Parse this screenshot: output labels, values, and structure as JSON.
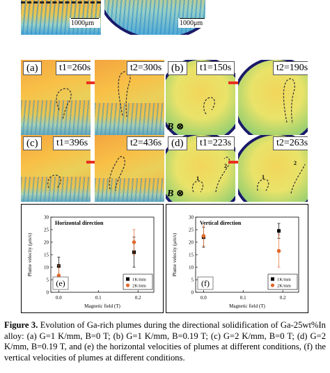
{
  "top_strip": {
    "scale_left": "1000μm",
    "scale_right": "1000μm"
  },
  "panels": {
    "a": {
      "label": "(a)",
      "t1": "t1=260s",
      "t2": "t2=300s"
    },
    "b": {
      "label": "(b)",
      "t1": "t1=150s",
      "t2": "t2=190s",
      "field": "B ⊗"
    },
    "c": {
      "label": "(c)",
      "t1": "t1=396s",
      "t2": "t2=436s"
    },
    "d": {
      "label": "(d)",
      "t1": "t1=223s",
      "t2": "t2=263s",
      "field": "B ⊗",
      "marker1": "1",
      "marker2": "2"
    }
  },
  "chart_data": [
    {
      "type": "scatter",
      "title": "Horizontal direction",
      "panel_label": "(e)",
      "xlabel": "Magnetic field (T)",
      "ylabel": "Plume velocity (μm/s)",
      "xlim": [
        -0.02,
        0.24
      ],
      "ylim": [
        0,
        30
      ],
      "xticks": [
        "0.0",
        "0.1",
        "0.2"
      ],
      "xtick_values": [
        0.0,
        0.1,
        0.2
      ],
      "yticks": [
        "0",
        "5",
        "10",
        "15",
        "20",
        "25",
        "30"
      ],
      "ytick_values": [
        0,
        5,
        10,
        15,
        20,
        25,
        30
      ],
      "grid": false,
      "legend_position": "bottom-right",
      "series": [
        {
          "name": "1K/mm",
          "color": "#000000",
          "marker": "square",
          "points": [
            {
              "x": 0.0,
              "y": 10.5,
              "err": 3.5
            },
            {
              "x": 0.19,
              "y": 16.0,
              "err": 6.0
            }
          ]
        },
        {
          "name": "2K/mm",
          "color": "#e06a2c",
          "marker": "circle",
          "points": [
            {
              "x": 0.0,
              "y": 6.7,
              "err": 4.0
            },
            {
              "x": 0.19,
              "y": 20.0,
              "err": 5.0
            }
          ]
        }
      ]
    },
    {
      "type": "scatter",
      "title": "Vertical direction",
      "panel_label": "(f)",
      "xlabel": "Magnetic field (T)",
      "ylabel": "Plume velocity (μm/s)",
      "xlim": [
        -0.02,
        0.24
      ],
      "ylim": [
        0,
        30
      ],
      "xticks": [
        "0.0",
        "0.1",
        "0.2"
      ],
      "xtick_values": [
        0.0,
        0.1,
        0.2
      ],
      "yticks": [
        "0",
        "5",
        "10",
        "15",
        "20",
        "25",
        "30"
      ],
      "ytick_values": [
        0,
        5,
        10,
        15,
        20,
        25,
        30
      ],
      "grid": false,
      "legend_position": "bottom-right",
      "series": [
        {
          "name": "1K/mm",
          "color": "#000000",
          "marker": "square",
          "points": [
            {
              "x": 0.0,
              "y": 22.0,
              "err": 4.0
            },
            {
              "x": 0.19,
              "y": 24.5,
              "err": 3.0
            }
          ]
        },
        {
          "name": "2K/mm",
          "color": "#e06a2c",
          "marker": "circle",
          "points": [
            {
              "x": 0.0,
              "y": 22.5,
              "err": 4.0
            },
            {
              "x": 0.19,
              "y": 16.5,
              "err": 6.5
            }
          ]
        }
      ]
    }
  ],
  "caption": {
    "bold": "Figure 3.",
    "text": " Evolution of Ga-rich plumes during the directional solidification of Ga-25wt%In alloy: (a) G=1 K/mm, B=0 T; (b) G=1 K/mm, B=0.19 T; (c) G=2 K/mm, B=0 T; (d) G=2 K/mm, B=0.19 T, and (e) the horizontal velocities of plumes at different conditions, (f) the vertical velocities of plumes at different conditions."
  },
  "colors": {
    "arrow": "#e8301f",
    "frame": "#1a1a6a"
  }
}
